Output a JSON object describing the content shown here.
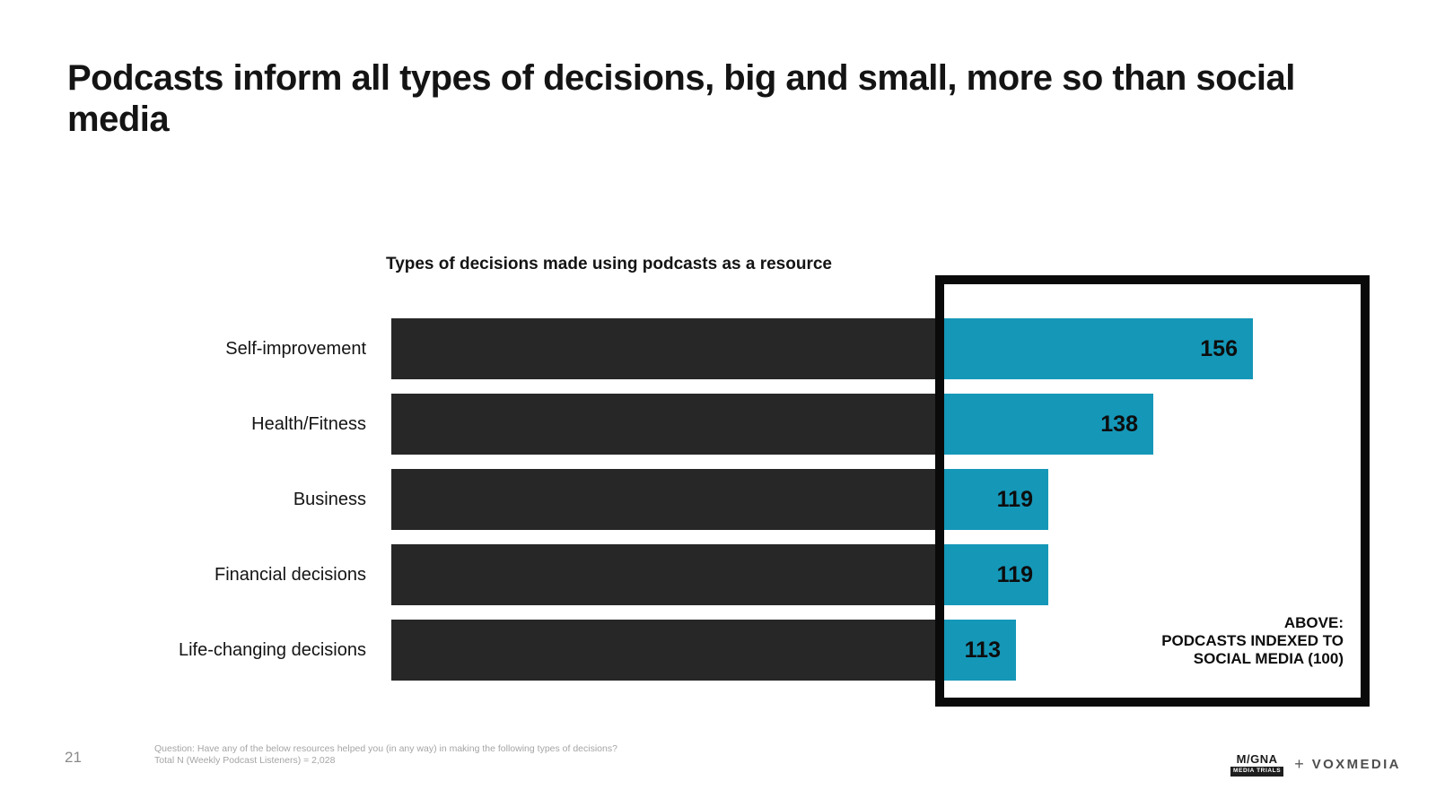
{
  "slide": {
    "title": "Podcasts inform all types of decisions, big and small, more so than social media",
    "page_number": "21",
    "footnote_line1": "Question: Have any of the below resources helped you (in any way) in making the following types of decisions?",
    "footnote_line2": "Total N (Weekly Podcast Listeners) = 2,028"
  },
  "chart_data": {
    "type": "bar",
    "orientation": "horizontal",
    "title": "Types of decisions made using podcasts as a resource",
    "categories": [
      "Self-improvement",
      "Health/Fitness",
      "Business",
      "Financial decisions",
      "Life-changing decisions"
    ],
    "values": [
      156,
      138,
      119,
      119,
      113
    ],
    "baseline_index": 100,
    "xlim": [
      0,
      178
    ],
    "grid": false,
    "legend": false,
    "annotation_lines": [
      "ABOVE:",
      "PODCASTS INDEXED TO",
      "SOCIAL MEDIA (100)"
    ],
    "colors": {
      "bar_base": "#272727",
      "bar_above_baseline": "#1597b8",
      "frame": "#0a0a0a"
    }
  },
  "footer_logos": {
    "magna_word": "M/GNA",
    "magna_sub": "MEDIA TRIALS",
    "plus": "+",
    "voxmedia": "VOXMEDIA"
  }
}
